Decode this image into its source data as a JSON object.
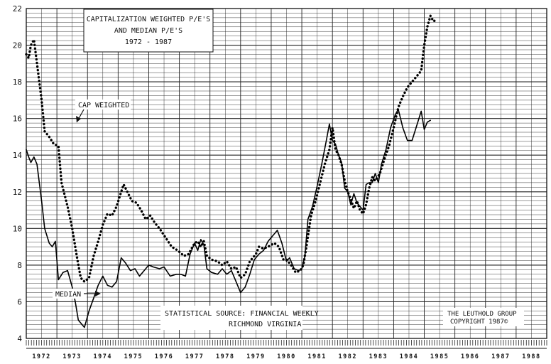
{
  "chart_data": {
    "type": "line",
    "title": [
      "CAPITALIZATION WEIGHTED P/E'S",
      "AND MEDIAN P/E'S",
      "1972 - 1987"
    ],
    "xlabel": "",
    "ylabel": "",
    "xlim": [
      1972,
      1989
    ],
    "ylim": [
      4,
      22
    ],
    "yticks": [
      4,
      6,
      8,
      10,
      12,
      14,
      16,
      18,
      20,
      22
    ],
    "xticks": [
      "1972",
      "1973",
      "1974",
      "1975",
      "1976",
      "1977",
      "1978",
      "1979",
      "1980",
      "1981",
      "1982",
      "1983",
      "1984",
      "1985",
      "1986",
      "1987",
      "1988"
    ],
    "grid": true,
    "series": [
      {
        "name": "CAP WEIGHTED",
        "style": "dotted",
        "points": [
          [
            1972.0,
            19.5
          ],
          [
            1972.08,
            19.3
          ],
          [
            1972.15,
            20.0
          ],
          [
            1972.25,
            20.3
          ],
          [
            1972.35,
            19.0
          ],
          [
            1972.5,
            17.0
          ],
          [
            1972.6,
            15.3
          ],
          [
            1972.75,
            15.0
          ],
          [
            1972.9,
            14.6
          ],
          [
            1973.05,
            14.5
          ],
          [
            1973.15,
            12.5
          ],
          [
            1973.35,
            11.2
          ],
          [
            1973.5,
            10.0
          ],
          [
            1973.65,
            8.5
          ],
          [
            1973.78,
            7.3
          ],
          [
            1973.9,
            7.1
          ],
          [
            1974.05,
            7.3
          ],
          [
            1974.2,
            8.5
          ],
          [
            1974.35,
            9.3
          ],
          [
            1974.5,
            10.2
          ],
          [
            1974.65,
            10.8
          ],
          [
            1974.8,
            10.7
          ],
          [
            1974.95,
            11.2
          ],
          [
            1975.1,
            12.0
          ],
          [
            1975.18,
            12.4
          ],
          [
            1975.3,
            12.0
          ],
          [
            1975.45,
            11.5
          ],
          [
            1975.6,
            11.4
          ],
          [
            1975.75,
            11.0
          ],
          [
            1975.9,
            10.5
          ],
          [
            1976.05,
            10.7
          ],
          [
            1976.2,
            10.3
          ],
          [
            1976.35,
            10.0
          ],
          [
            1976.55,
            9.5
          ],
          [
            1976.75,
            9.0
          ],
          [
            1976.95,
            8.8
          ],
          [
            1977.15,
            8.5
          ],
          [
            1977.3,
            8.6
          ],
          [
            1977.5,
            9.2
          ],
          [
            1977.6,
            9.3
          ],
          [
            1977.7,
            9.0
          ],
          [
            1977.8,
            9.3
          ],
          [
            1977.9,
            8.5
          ],
          [
            1978.05,
            8.3
          ],
          [
            1978.25,
            8.2
          ],
          [
            1978.4,
            8.0
          ],
          [
            1978.55,
            8.2
          ],
          [
            1978.7,
            7.8
          ],
          [
            1978.85,
            7.9
          ],
          [
            1979.0,
            7.3
          ],
          [
            1979.15,
            7.5
          ],
          [
            1979.3,
            8.2
          ],
          [
            1979.5,
            8.6
          ],
          [
            1979.6,
            9.0
          ],
          [
            1979.75,
            8.9
          ],
          [
            1979.9,
            9.0
          ],
          [
            1980.1,
            9.2
          ],
          [
            1980.25,
            9.0
          ],
          [
            1980.4,
            8.3
          ],
          [
            1980.5,
            8.3
          ],
          [
            1980.65,
            8.0
          ],
          [
            1980.8,
            7.6
          ],
          [
            1980.95,
            7.7
          ],
          [
            1981.05,
            8.0
          ],
          [
            1981.15,
            9.0
          ],
          [
            1981.3,
            10.7
          ],
          [
            1981.45,
            11.5
          ],
          [
            1981.6,
            12.5
          ],
          [
            1981.75,
            13.5
          ],
          [
            1981.9,
            14.3
          ],
          [
            1982.0,
            15.5
          ],
          [
            1982.1,
            14.3
          ],
          [
            1982.2,
            14.0
          ],
          [
            1982.3,
            13.5
          ],
          [
            1982.4,
            12.6
          ],
          [
            1982.5,
            12.0
          ],
          [
            1982.6,
            11.6
          ],
          [
            1982.7,
            11.1
          ],
          [
            1982.8,
            11.5
          ],
          [
            1982.9,
            11.0
          ],
          [
            1983.0,
            10.8
          ],
          [
            1983.1,
            11.3
          ],
          [
            1983.2,
            12.2
          ],
          [
            1983.3,
            12.8
          ],
          [
            1983.4,
            12.6
          ],
          [
            1983.55,
            13.0
          ],
          [
            1983.7,
            13.8
          ],
          [
            1983.85,
            14.5
          ],
          [
            1984.0,
            15.5
          ],
          [
            1984.15,
            16.6
          ],
          [
            1984.3,
            17.2
          ],
          [
            1984.45,
            17.7
          ],
          [
            1984.6,
            18.0
          ],
          [
            1984.75,
            18.3
          ],
          [
            1984.9,
            18.6
          ],
          [
            1985.0,
            20.0
          ],
          [
            1985.1,
            21.0
          ],
          [
            1985.2,
            21.6
          ],
          [
            1985.3,
            21.3
          ],
          [
            1985.4,
            21.4
          ]
        ]
      },
      {
        "name": "MEDIAN",
        "style": "solid",
        "points": [
          [
            1972.0,
            14.3
          ],
          [
            1972.08,
            13.9
          ],
          [
            1972.15,
            13.6
          ],
          [
            1972.25,
            13.9
          ],
          [
            1972.35,
            13.5
          ],
          [
            1972.5,
            11.5
          ],
          [
            1972.6,
            10.0
          ],
          [
            1972.75,
            9.2
          ],
          [
            1972.85,
            9.0
          ],
          [
            1972.95,
            9.3
          ],
          [
            1973.05,
            7.2
          ],
          [
            1973.2,
            7.6
          ],
          [
            1973.35,
            7.7
          ],
          [
            1973.5,
            6.8
          ],
          [
            1973.6,
            6.0
          ],
          [
            1973.7,
            5.0
          ],
          [
            1973.8,
            4.8
          ],
          [
            1973.9,
            4.6
          ],
          [
            1974.05,
            5.5
          ],
          [
            1974.2,
            6.2
          ],
          [
            1974.35,
            6.9
          ],
          [
            1974.5,
            7.4
          ],
          [
            1974.65,
            6.9
          ],
          [
            1974.8,
            6.8
          ],
          [
            1974.95,
            7.1
          ],
          [
            1975.1,
            8.4
          ],
          [
            1975.25,
            8.1
          ],
          [
            1975.4,
            7.7
          ],
          [
            1975.55,
            7.8
          ],
          [
            1975.7,
            7.4
          ],
          [
            1975.85,
            7.7
          ],
          [
            1976.0,
            8.0
          ],
          [
            1976.15,
            7.9
          ],
          [
            1976.35,
            7.8
          ],
          [
            1976.5,
            7.9
          ],
          [
            1976.7,
            7.4
          ],
          [
            1976.9,
            7.5
          ],
          [
            1977.05,
            7.5
          ],
          [
            1977.2,
            7.4
          ],
          [
            1977.35,
            8.6
          ],
          [
            1977.5,
            9.2
          ],
          [
            1977.6,
            8.8
          ],
          [
            1977.7,
            9.4
          ],
          [
            1977.8,
            9.1
          ],
          [
            1977.9,
            7.8
          ],
          [
            1978.05,
            7.6
          ],
          [
            1978.25,
            7.5
          ],
          [
            1978.4,
            7.8
          ],
          [
            1978.55,
            7.5
          ],
          [
            1978.7,
            7.7
          ],
          [
            1978.85,
            7.1
          ],
          [
            1979.0,
            6.5
          ],
          [
            1979.15,
            6.8
          ],
          [
            1979.3,
            7.5
          ],
          [
            1979.45,
            8.3
          ],
          [
            1979.6,
            8.6
          ],
          [
            1979.75,
            8.8
          ],
          [
            1979.9,
            9.3
          ],
          [
            1980.05,
            9.6
          ],
          [
            1980.2,
            9.9
          ],
          [
            1980.35,
            9.2
          ],
          [
            1980.5,
            8.2
          ],
          [
            1980.6,
            8.4
          ],
          [
            1980.75,
            7.8
          ],
          [
            1980.9,
            7.7
          ],
          [
            1981.0,
            7.8
          ],
          [
            1981.1,
            8.5
          ],
          [
            1981.2,
            10.5
          ],
          [
            1981.35,
            11.2
          ],
          [
            1981.5,
            12.3
          ],
          [
            1981.65,
            13.5
          ],
          [
            1981.8,
            14.8
          ],
          [
            1981.9,
            15.7
          ],
          [
            1982.0,
            14.8
          ],
          [
            1982.1,
            14.6
          ],
          [
            1982.2,
            14.0
          ],
          [
            1982.3,
            13.6
          ],
          [
            1982.4,
            12.2
          ],
          [
            1982.5,
            12.0
          ],
          [
            1982.6,
            11.3
          ],
          [
            1982.7,
            11.9
          ],
          [
            1982.8,
            11.4
          ],
          [
            1982.9,
            11.2
          ],
          [
            1983.0,
            11.0
          ],
          [
            1983.1,
            12.4
          ],
          [
            1983.2,
            12.5
          ],
          [
            1983.3,
            12.5
          ],
          [
            1983.4,
            13.0
          ],
          [
            1983.5,
            12.5
          ],
          [
            1983.6,
            13.5
          ],
          [
            1983.75,
            14.3
          ],
          [
            1983.9,
            15.5
          ],
          [
            1984.05,
            16.2
          ],
          [
            1984.15,
            16.5
          ],
          [
            1984.3,
            15.5
          ],
          [
            1984.45,
            14.8
          ],
          [
            1984.6,
            14.8
          ],
          [
            1984.75,
            15.6
          ],
          [
            1984.9,
            16.4
          ],
          [
            1985.0,
            15.4
          ],
          [
            1985.1,
            15.8
          ],
          [
            1985.2,
            15.9
          ]
        ]
      }
    ],
    "annotations": {
      "cap_label": "CAP WEIGHTED",
      "median_label": "MEDIAN",
      "source_line1": "STATISTICAL SOURCE: FINANCIAL WEEKLY",
      "source_line2": "RICHMOND VIRGINIA",
      "credit_line1": "THE LEUTHOLD GROUP",
      "credit_line2": "COPYRIGHT 1987©"
    }
  }
}
